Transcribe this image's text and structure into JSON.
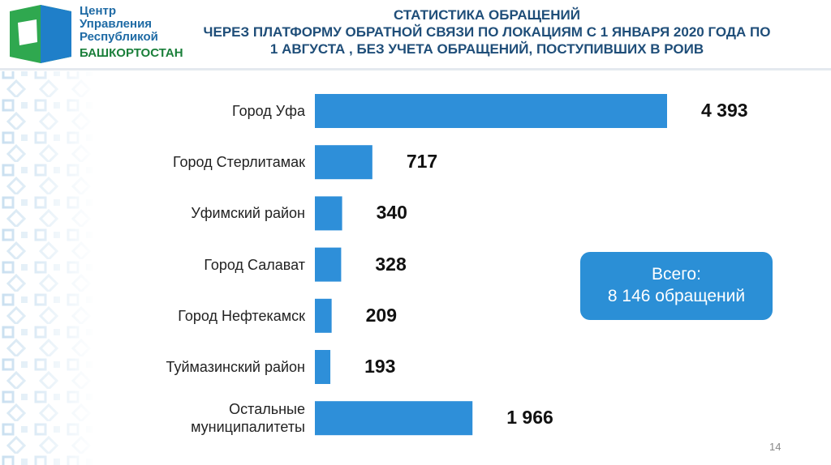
{
  "logo": {
    "lines": [
      "Центр",
      "Управления",
      "Республикой"
    ],
    "region": "БАШКОРТОСТАН"
  },
  "chart_data": {
    "type": "hbar",
    "title": "СТАТИСТИКА ОБРАЩЕНИЙ",
    "subtitle": "ЧЕРЕЗ ПЛАТФОРМУ ОБРАТНОЙ СВЯЗИ ПО ЛОКАЦИЯМ С 1 ЯНВАРЯ 2020 ГОДА ПО 1 АВГУСТА , БЕЗ УЧЕТА ОБРАЩЕНИЙ, ПОСТУПИВШИХ В РОИВ",
    "categories": [
      "Город Уфа",
      "Город Стерлитамак",
      "Уфимский район",
      "Город Салават",
      "Город Нефтекамск",
      "Туймазинский район",
      "Остальные муниципалитеты"
    ],
    "values": [
      4393,
      717,
      340,
      328,
      209,
      193,
      1966
    ],
    "value_labels": [
      "4 393",
      "717",
      "340",
      "328",
      "209",
      "193",
      "1 966"
    ],
    "color": "#2e8fd9"
  },
  "callout": {
    "title": "Всего:",
    "text": "8 146 обращений"
  },
  "page_number": "14"
}
